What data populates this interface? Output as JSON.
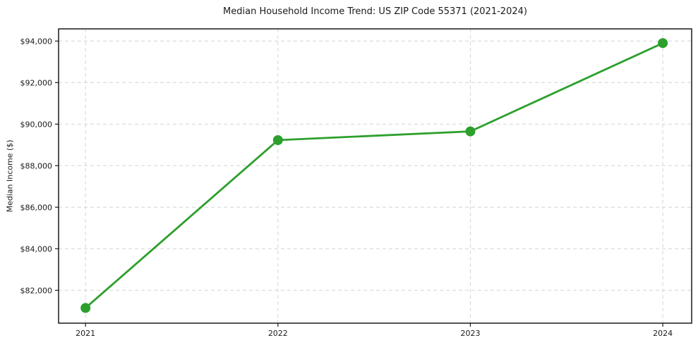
{
  "chart_data": {
    "type": "line",
    "title": "Median Household Income Trend: US ZIP Code 55371 (2021-2024)",
    "xlabel": "",
    "ylabel": "Median Income ($)",
    "x": [
      2021,
      2022,
      2023,
      2024
    ],
    "categories": [
      "2021",
      "2022",
      "2023",
      "2024"
    ],
    "series": [
      {
        "name": "Median Household Income",
        "values": [
          81150,
          89230,
          89650,
          93900
        ]
      }
    ],
    "x_ticks": [
      2021,
      2022,
      2023,
      2024
    ],
    "x_tick_labels": [
      "2021",
      "2022",
      "2023",
      "2024"
    ],
    "y_ticks": [
      82000,
      84000,
      86000,
      88000,
      90000,
      92000,
      94000
    ],
    "y_tick_labels": [
      "$82,000",
      "$84,000",
      "$86,000",
      "$88,000",
      "$90,000",
      "$92,000",
      "$94,000"
    ],
    "xlim": [
      2020.86,
      2024.15
    ],
    "ylim": [
      80417,
      94586
    ],
    "grid": true,
    "grid_style": "dashed",
    "legend": "none",
    "line_color": "#2ca02c",
    "marker": "circle",
    "marker_size": 7,
    "background_color": "#ffffff",
    "text_color": "#1a1a1a",
    "grid_color": "#d4d4d4"
  }
}
